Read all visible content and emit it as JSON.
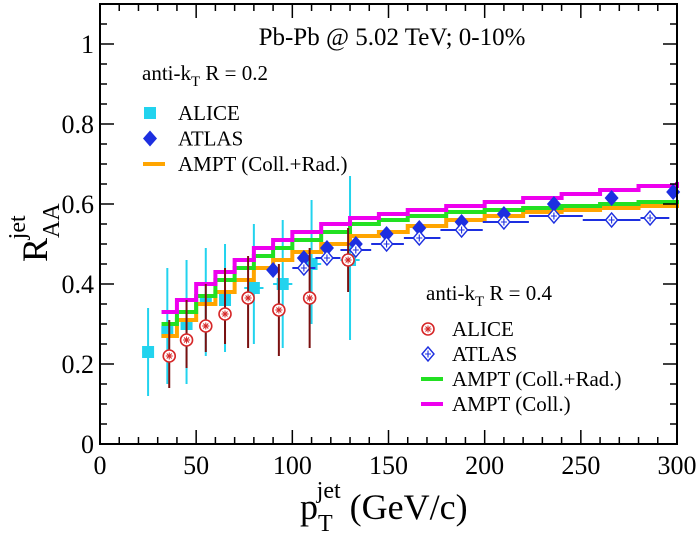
{
  "chart_data": {
    "type": "scatter",
    "title": "Pb-Pb @ 5.02 TeV;   0-10%",
    "xlabel": {
      "main": "p",
      "sub": "T",
      "sup": "jet",
      "unit": " (GeV/c)"
    },
    "ylabel": {
      "main": "R",
      "sub": "AA",
      "sup": "jet"
    },
    "xlim": [
      0,
      300
    ],
    "ylim": [
      0,
      1.1
    ],
    "xticks": [
      0,
      50,
      100,
      150,
      200,
      250,
      300
    ],
    "yticks": [
      0,
      0.2,
      0.4,
      0.6,
      0.8,
      1
    ],
    "ytick_labels": [
      "0",
      "0.2",
      "0.4",
      "0.6",
      "0.8",
      "1"
    ],
    "grid": false,
    "legend_groups": [
      {
        "pre": "anti-k",
        "sub": "T",
        "post": "  R = 0.2",
        "placement": "top-left"
      },
      {
        "pre": "anti-k",
        "sub": "T",
        "post": "  R = 0.4",
        "placement": "bottom-right"
      }
    ],
    "series": [
      {
        "name": "ALICE",
        "group": 0,
        "kind": "points",
        "marker": "square",
        "color": "#22d3ee",
        "points": [
          {
            "x": 25,
            "y": 0.23,
            "ylo": 0.12,
            "yhi": 0.34,
            "xlo": 22,
            "xhi": 28
          },
          {
            "x": 35,
            "y": 0.28,
            "ylo": 0.15,
            "yhi": 0.44,
            "xlo": 32,
            "xhi": 38
          },
          {
            "x": 45,
            "y": 0.3,
            "ylo": 0.15,
            "yhi": 0.46,
            "xlo": 42,
            "xhi": 48
          },
          {
            "x": 55,
            "y": 0.36,
            "ylo": 0.22,
            "yhi": 0.49,
            "xlo": 52,
            "xhi": 58
          },
          {
            "x": 65,
            "y": 0.36,
            "ylo": 0.23,
            "yhi": 0.5,
            "xlo": 62,
            "xhi": 68
          },
          {
            "x": 80,
            "y": 0.39,
            "ylo": 0.25,
            "yhi": 0.55,
            "xlo": 75,
            "xhi": 85
          },
          {
            "x": 95,
            "y": 0.4,
            "ylo": 0.24,
            "yhi": 0.56,
            "xlo": 90,
            "xhi": 100
          },
          {
            "x": 110,
            "y": 0.45,
            "ylo": 0.3,
            "yhi": 0.61,
            "xlo": 105,
            "xhi": 115
          },
          {
            "x": 130,
            "y": 0.46,
            "ylo": 0.26,
            "yhi": 0.67,
            "xlo": 125,
            "xhi": 135
          }
        ]
      },
      {
        "name": "ATLAS",
        "group": 0,
        "kind": "points",
        "marker": "diamond",
        "color": "#1d2fe0",
        "points": [
          {
            "x": 90,
            "y": 0.435
          },
          {
            "x": 106,
            "y": 0.465
          },
          {
            "x": 118,
            "y": 0.49
          },
          {
            "x": 133,
            "y": 0.5
          },
          {
            "x": 149,
            "y": 0.525
          },
          {
            "x": 166,
            "y": 0.54
          },
          {
            "x": 188,
            "y": 0.555
          },
          {
            "x": 210,
            "y": 0.575
          },
          {
            "x": 236,
            "y": 0.6
          },
          {
            "x": 266,
            "y": 0.615
          },
          {
            "x": 298,
            "y": 0.63
          }
        ]
      },
      {
        "name": "AMPT (Coll.+Rad.)",
        "group": 0,
        "kind": "step",
        "color": "#ffa500",
        "points": [
          {
            "x": 32,
            "y": 0.27
          },
          {
            "x": 40,
            "y": 0.31
          },
          {
            "x": 50,
            "y": 0.35
          },
          {
            "x": 60,
            "y": 0.38
          },
          {
            "x": 70,
            "y": 0.41
          },
          {
            "x": 80,
            "y": 0.44
          },
          {
            "x": 90,
            "y": 0.46
          },
          {
            "x": 100,
            "y": 0.48
          },
          {
            "x": 115,
            "y": 0.5
          },
          {
            "x": 130,
            "y": 0.52
          },
          {
            "x": 145,
            "y": 0.53
          },
          {
            "x": 160,
            "y": 0.545
          },
          {
            "x": 180,
            "y": 0.56
          },
          {
            "x": 200,
            "y": 0.57
          },
          {
            "x": 220,
            "y": 0.58
          },
          {
            "x": 240,
            "y": 0.585
          },
          {
            "x": 260,
            "y": 0.59
          },
          {
            "x": 280,
            "y": 0.595
          },
          {
            "x": 300,
            "y": 0.6
          }
        ]
      },
      {
        "name": "ALICE",
        "group": 1,
        "kind": "points",
        "marker": "circle",
        "color": "#d62728",
        "errcolor": "#7a1010",
        "points": [
          {
            "x": 36,
            "y": 0.22,
            "ylo": 0.14,
            "yhi": 0.31
          },
          {
            "x": 45,
            "y": 0.26,
            "ylo": 0.19,
            "yhi": 0.36
          },
          {
            "x": 55,
            "y": 0.295,
            "ylo": 0.23,
            "yhi": 0.4
          },
          {
            "x": 65,
            "y": 0.325,
            "ylo": 0.25,
            "yhi": 0.44
          },
          {
            "x": 77,
            "y": 0.365,
            "ylo": 0.24,
            "yhi": 0.47
          },
          {
            "x": 93,
            "y": 0.335,
            "ylo": 0.22,
            "yhi": 0.45
          },
          {
            "x": 109,
            "y": 0.365,
            "ylo": 0.24,
            "yhi": 0.49
          },
          {
            "x": 129,
            "y": 0.46,
            "ylo": 0.38,
            "yhi": 0.54
          }
        ]
      },
      {
        "name": "ATLAS",
        "group": 1,
        "kind": "points",
        "marker": "diamond-open",
        "color": "#1d2fe0",
        "points": [
          {
            "x": 106,
            "y": 0.44,
            "xlo": 100,
            "xhi": 112
          },
          {
            "x": 118,
            "y": 0.465,
            "xlo": 112,
            "xhi": 125
          },
          {
            "x": 133,
            "y": 0.485,
            "xlo": 125,
            "xhi": 141
          },
          {
            "x": 149,
            "y": 0.5,
            "xlo": 141,
            "xhi": 158
          },
          {
            "x": 166,
            "y": 0.515,
            "xlo": 158,
            "xhi": 177
          },
          {
            "x": 188,
            "y": 0.535,
            "xlo": 177,
            "xhi": 199
          },
          {
            "x": 210,
            "y": 0.555,
            "xlo": 199,
            "xhi": 223
          },
          {
            "x": 236,
            "y": 0.57,
            "xlo": 223,
            "xhi": 251
          },
          {
            "x": 266,
            "y": 0.56,
            "xlo": 251,
            "xhi": 281
          },
          {
            "x": 286,
            "y": 0.565,
            "xlo": 281,
            "xhi": 296
          }
        ]
      },
      {
        "name": "AMPT (Coll.+Rad.)",
        "group": 1,
        "kind": "step",
        "color": "#22e022",
        "points": [
          {
            "x": 32,
            "y": 0.3
          },
          {
            "x": 40,
            "y": 0.33
          },
          {
            "x": 50,
            "y": 0.37
          },
          {
            "x": 60,
            "y": 0.41
          },
          {
            "x": 70,
            "y": 0.44
          },
          {
            "x": 80,
            "y": 0.47
          },
          {
            "x": 90,
            "y": 0.49
          },
          {
            "x": 100,
            "y": 0.51
          },
          {
            "x": 115,
            "y": 0.53
          },
          {
            "x": 130,
            "y": 0.55
          },
          {
            "x": 145,
            "y": 0.56
          },
          {
            "x": 160,
            "y": 0.57
          },
          {
            "x": 180,
            "y": 0.58
          },
          {
            "x": 200,
            "y": 0.585
          },
          {
            "x": 220,
            "y": 0.59
          },
          {
            "x": 240,
            "y": 0.595
          },
          {
            "x": 260,
            "y": 0.6
          },
          {
            "x": 280,
            "y": 0.605
          },
          {
            "x": 300,
            "y": 0.61
          }
        ]
      },
      {
        "name": "AMPT (Coll.)",
        "group": 1,
        "kind": "step",
        "color": "#ee00ee",
        "points": [
          {
            "x": 32,
            "y": 0.33
          },
          {
            "x": 40,
            "y": 0.36
          },
          {
            "x": 50,
            "y": 0.4
          },
          {
            "x": 60,
            "y": 0.43
          },
          {
            "x": 70,
            "y": 0.46
          },
          {
            "x": 80,
            "y": 0.49
          },
          {
            "x": 90,
            "y": 0.51
          },
          {
            "x": 100,
            "y": 0.53
          },
          {
            "x": 115,
            "y": 0.55
          },
          {
            "x": 130,
            "y": 0.565
          },
          {
            "x": 145,
            "y": 0.575
          },
          {
            "x": 160,
            "y": 0.585
          },
          {
            "x": 180,
            "y": 0.595
          },
          {
            "x": 200,
            "y": 0.605
          },
          {
            "x": 220,
            "y": 0.615
          },
          {
            "x": 240,
            "y": 0.625
          },
          {
            "x": 260,
            "y": 0.635
          },
          {
            "x": 280,
            "y": 0.645
          },
          {
            "x": 300,
            "y": 0.655
          }
        ]
      }
    ]
  }
}
